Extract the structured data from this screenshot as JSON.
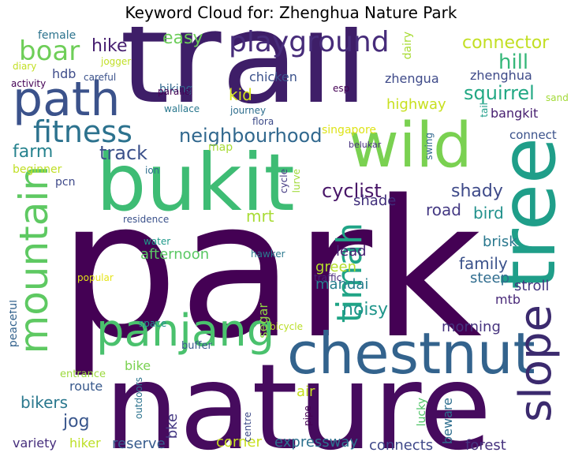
{
  "title": "Keyword Cloud for: Zhenghua Nature Park",
  "words": [
    {
      "text": "park",
      "color": "#440154"
    },
    {
      "text": "trail",
      "color": "#3e1e68"
    },
    {
      "text": "nature",
      "color": "#460b5e"
    },
    {
      "text": "bukit",
      "color": "#3ebc74"
    },
    {
      "text": "chestnut",
      "color": "#33638d"
    },
    {
      "text": "tree",
      "color": "#1f9e89"
    },
    {
      "text": "wild",
      "color": "#7ad151"
    },
    {
      "text": "path",
      "color": "#3b528b"
    },
    {
      "text": "mountain",
      "color": "#5ec962"
    },
    {
      "text": "panjang",
      "color": "#4ac16d"
    },
    {
      "text": "slope",
      "color": "#3b2a6e"
    },
    {
      "text": "fitness",
      "color": "#2c728e"
    },
    {
      "text": "playground",
      "color": "#472c7a"
    },
    {
      "text": "timah",
      "color": "#20a486"
    },
    {
      "text": "boar",
      "color": "#6ece58"
    },
    {
      "text": "neighbourhood",
      "color": "#31688e"
    },
    {
      "text": "track",
      "color": "#3b518b"
    },
    {
      "text": "farm",
      "color": "#26828e"
    },
    {
      "text": "hike",
      "color": "#482071"
    },
    {
      "text": "cyclist",
      "color": "#481668"
    },
    {
      "text": "shady",
      "color": "#3e4a89"
    },
    {
      "text": "hill",
      "color": "#35b779"
    },
    {
      "text": "squirrel",
      "color": "#22a884"
    },
    {
      "text": "easy",
      "color": "#6ccd5a"
    },
    {
      "text": "connector",
      "color": "#c2df23"
    },
    {
      "text": "kid",
      "color": "#d2e21b"
    },
    {
      "text": "mrt",
      "color": "#a8db34"
    },
    {
      "text": "road",
      "color": "#443983"
    },
    {
      "text": "family",
      "color": "#3b528b"
    },
    {
      "text": "noisy",
      "color": "#1f958b"
    },
    {
      "text": "jog",
      "color": "#39568c"
    },
    {
      "text": "bikers",
      "color": "#2a788e"
    },
    {
      "text": "bird",
      "color": "#21918c"
    },
    {
      "text": "shade",
      "color": "#3f2d7a"
    },
    {
      "text": "afternoon",
      "color": "#5ac864"
    },
    {
      "text": "lead",
      "color": "#482475"
    },
    {
      "text": "green",
      "color": "#b5de2b"
    },
    {
      "text": "mandai",
      "color": "#277f8e"
    },
    {
      "text": "brisk",
      "color": "#2a788e"
    },
    {
      "text": "steep",
      "color": "#2f6c8e"
    },
    {
      "text": "stroll",
      "color": "#453781"
    },
    {
      "text": "mtb",
      "color": "#482878"
    },
    {
      "text": "morning",
      "color": "#46337e"
    },
    {
      "text": "forest",
      "color": "#46327e"
    },
    {
      "text": "expressway",
      "color": "#2d708e"
    },
    {
      "text": "connects",
      "color": "#3f4889"
    },
    {
      "text": "reserve",
      "color": "#375b8d"
    },
    {
      "text": "corner",
      "color": "#c8e020"
    },
    {
      "text": "hiker",
      "color": "#bddf26"
    },
    {
      "text": "variety",
      "color": "#472f7d"
    },
    {
      "text": "route",
      "color": "#38598c"
    },
    {
      "text": "bike",
      "color": "#7ad151"
    },
    {
      "text": "bke",
      "color": "#443983"
    },
    {
      "text": "air",
      "color": "#c5e021"
    },
    {
      "text": "segar",
      "color": "#90d743"
    },
    {
      "text": "beware",
      "color": "#2e6e8e"
    },
    {
      "text": "lucky",
      "color": "#52c569"
    },
    {
      "text": "pipe",
      "color": "#440154"
    },
    {
      "text": "centre",
      "color": "#3e4c8a"
    },
    {
      "text": "outdoors",
      "color": "#2c738e"
    },
    {
      "text": "entrance",
      "color": "#9bd93c"
    },
    {
      "text": "buffer",
      "color": "#38598c"
    },
    {
      "text": "space",
      "color": "#21918c"
    },
    {
      "text": "bicycle",
      "color": "#bade28"
    },
    {
      "text": "peaceful",
      "color": "#33628d"
    },
    {
      "text": "popular",
      "color": "#e5e419"
    },
    {
      "text": "traffic",
      "color": "#482677"
    },
    {
      "text": "hawker",
      "color": "#2a788e"
    },
    {
      "text": "water",
      "color": "#1f9a8a"
    },
    {
      "text": "residence",
      "color": "#3b528b"
    },
    {
      "text": "lurve",
      "color": "#a0da39"
    },
    {
      "text": "cycle",
      "color": "#443a83"
    },
    {
      "text": "ion",
      "color": "#2e6f8e"
    },
    {
      "text": "swing",
      "color": "#31688e"
    },
    {
      "text": "map",
      "color": "#a8db34"
    },
    {
      "text": "beginner",
      "color": "#c0df25"
    },
    {
      "text": "pcn",
      "color": "#3e4989"
    },
    {
      "text": "belukar",
      "color": "#46307e"
    },
    {
      "text": "singapore",
      "color": "#dde318"
    },
    {
      "text": "connect",
      "color": "#3b528b"
    },
    {
      "text": "bangkit",
      "color": "#482071"
    },
    {
      "text": "tail",
      "color": "#1f9e89"
    },
    {
      "text": "flora",
      "color": "#3e4c8a"
    },
    {
      "text": "journey",
      "color": "#2e6e8e"
    },
    {
      "text": "wallace",
      "color": "#2a788e"
    },
    {
      "text": "biking",
      "color": "#31688e"
    },
    {
      "text": "parallel",
      "color": "#440154"
    },
    {
      "text": "chicken",
      "color": "#3b528b"
    },
    {
      "text": "highway",
      "color": "#c8e020"
    },
    {
      "text": "zhengua",
      "color": "#3e4a89"
    },
    {
      "text": "zhenghua",
      "color": "#3e4a89"
    },
    {
      "text": "esp",
      "color": "#440154"
    },
    {
      "text": "sand",
      "color": "#a2da37"
    },
    {
      "text": "dairy",
      "color": "#a8db34"
    },
    {
      "text": "hdb",
      "color": "#3e4c8a"
    },
    {
      "text": "female",
      "color": "#2c738e"
    },
    {
      "text": "jogger",
      "color": "#c0df25"
    },
    {
      "text": "diary",
      "color": "#c2df23"
    },
    {
      "text": "careful",
      "color": "#3b528b"
    },
    {
      "text": "activity",
      "color": "#440154"
    }
  ]
}
